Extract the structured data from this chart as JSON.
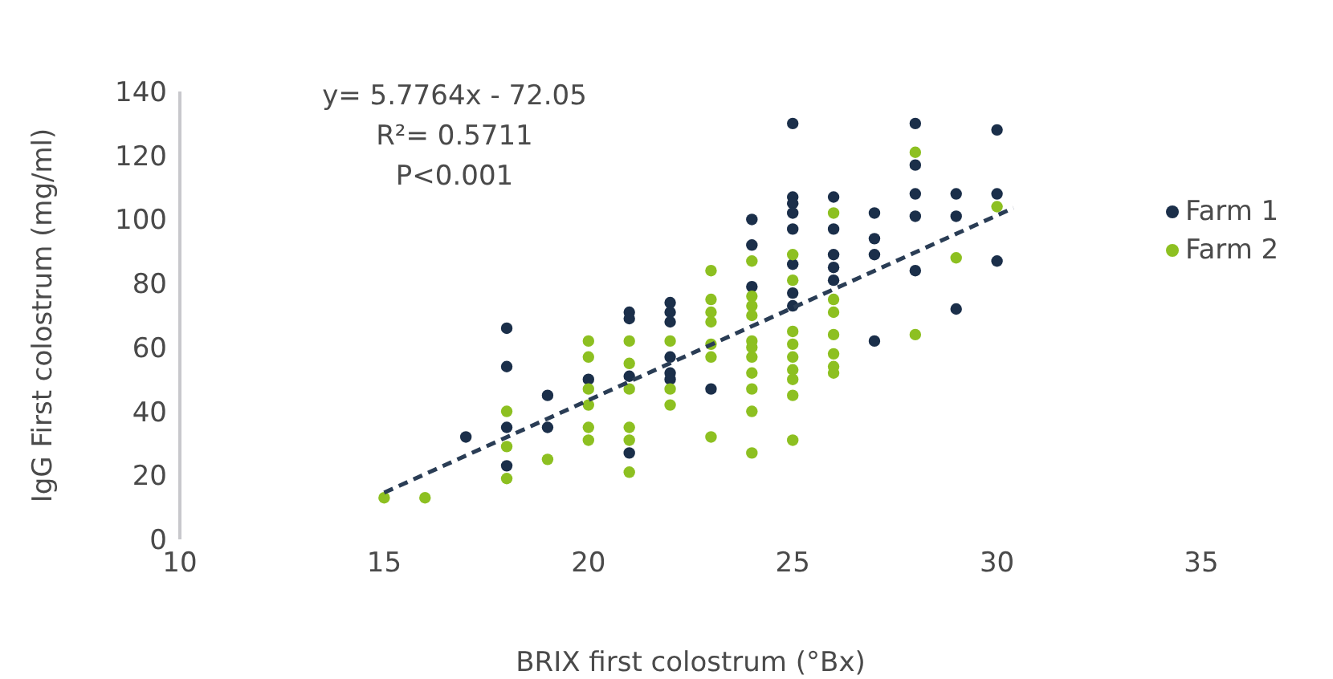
{
  "chart_data": {
    "type": "scatter",
    "xlabel": "BRIX first colostrum (°Bx)",
    "ylabel": "IgG First colostrum (mg/ml)",
    "xlim": [
      10,
      35
    ],
    "xticks": [
      10,
      15,
      20,
      25,
      30,
      35
    ],
    "ylim": [
      0,
      140
    ],
    "yticks": [
      0,
      20,
      40,
      60,
      80,
      100,
      120,
      140
    ],
    "legend": "right",
    "marker": "circle",
    "annotations": [
      "y= 5.7764x - 72.05",
      "R²= 0.5711",
      "P<0.001"
    ],
    "series": [
      {
        "name": "Farm 1",
        "color": "#1b2f4a",
        "x": [
          17,
          18,
          18,
          18,
          18,
          19,
          19,
          20,
          21,
          21,
          21,
          21,
          22,
          22,
          22,
          22,
          22,
          22,
          23,
          24,
          24,
          24,
          25,
          25,
          25,
          25,
          25,
          25,
          25,
          25,
          26,
          26,
          26,
          26,
          26,
          27,
          27,
          27,
          27,
          28,
          28,
          28,
          28,
          28,
          29,
          29,
          29,
          30,
          30,
          30
        ],
        "values": [
          32,
          66,
          54,
          35,
          23,
          45,
          35,
          50,
          71,
          69,
          51,
          27,
          74,
          71,
          68,
          57,
          52,
          50,
          47,
          100,
          92,
          79,
          130,
          107,
          105,
          102,
          97,
          86,
          77,
          73,
          107,
          97,
          89,
          85,
          81,
          102,
          94,
          89,
          62,
          130,
          117,
          108,
          101,
          84,
          108,
          101,
          72,
          128,
          108,
          87
        ]
      },
      {
        "name": "Farm 2",
        "color": "#8dc021",
        "x": [
          15,
          16,
          18,
          18,
          18,
          19,
          20,
          20,
          20,
          20,
          20,
          20,
          21,
          21,
          21,
          21,
          21,
          21,
          22,
          22,
          22,
          23,
          23,
          23,
          23,
          23,
          23,
          23,
          24,
          24,
          24,
          24,
          24,
          24,
          24,
          24,
          24,
          24,
          24,
          25,
          25,
          25,
          25,
          25,
          25,
          25,
          25,
          25,
          26,
          26,
          26,
          26,
          26,
          26,
          26,
          28,
          28,
          29,
          30
        ],
        "values": [
          13,
          13,
          40,
          29,
          19,
          25,
          62,
          57,
          47,
          42,
          35,
          31,
          62,
          55,
          47,
          35,
          31,
          21,
          62,
          47,
          42,
          84,
          75,
          71,
          68,
          61,
          57,
          32,
          87,
          76,
          73,
          70,
          62,
          60,
          57,
          52,
          47,
          40,
          27,
          89,
          81,
          65,
          61,
          57,
          53,
          50,
          45,
          31,
          102,
          75,
          71,
          64,
          58,
          54,
          52,
          121,
          64,
          88,
          104
        ]
      },
      {
        "type": "line",
        "line_style": "dashed",
        "marker": "none",
        "color": "#2a3d55",
        "x": [
          15,
          30.4
        ],
        "values": [
          14.6,
          103.6
        ]
      }
    ]
  }
}
